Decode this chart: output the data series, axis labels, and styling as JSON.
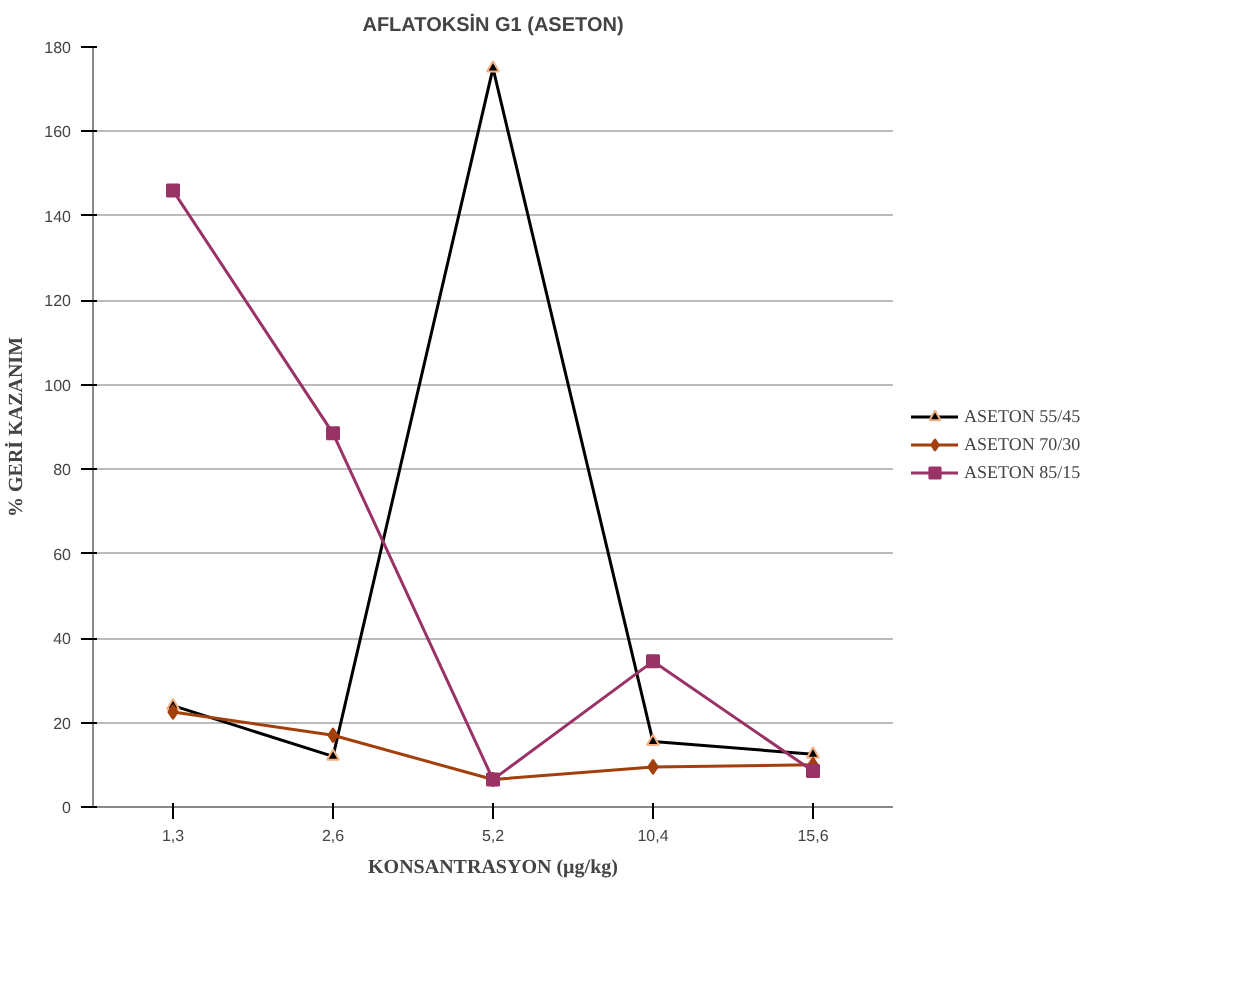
{
  "chart_data": {
    "type": "line",
    "title": "AFLATOKSİN G1 (ASETON)",
    "xlabel": "KONSANTRASYON (µg/kg)",
    "ylabel": "% GERİ KAZANIM",
    "categories": [
      "1,3",
      "2,6",
      "5,2",
      "10,4",
      "15,6"
    ],
    "series": [
      {
        "name": "ASETON 55/45",
        "color": "#000000",
        "marker": "triangle",
        "values": [
          24,
          12,
          175,
          15.5,
          12.5
        ]
      },
      {
        "name": "ASETON 70/30",
        "color": "#a33f0b",
        "marker": "diamond",
        "values": [
          22.5,
          17,
          6.5,
          9.5,
          10
        ]
      },
      {
        "name": "ASETON 85/15",
        "color": "#993366",
        "marker": "square",
        "values": [
          146,
          88.5,
          6.5,
          34.5,
          8.5
        ]
      }
    ],
    "ylim": [
      0,
      180
    ],
    "yticks": [
      0,
      20,
      40,
      60,
      80,
      100,
      120,
      140,
      160,
      180
    ],
    "grid": "y",
    "legend": "right"
  }
}
